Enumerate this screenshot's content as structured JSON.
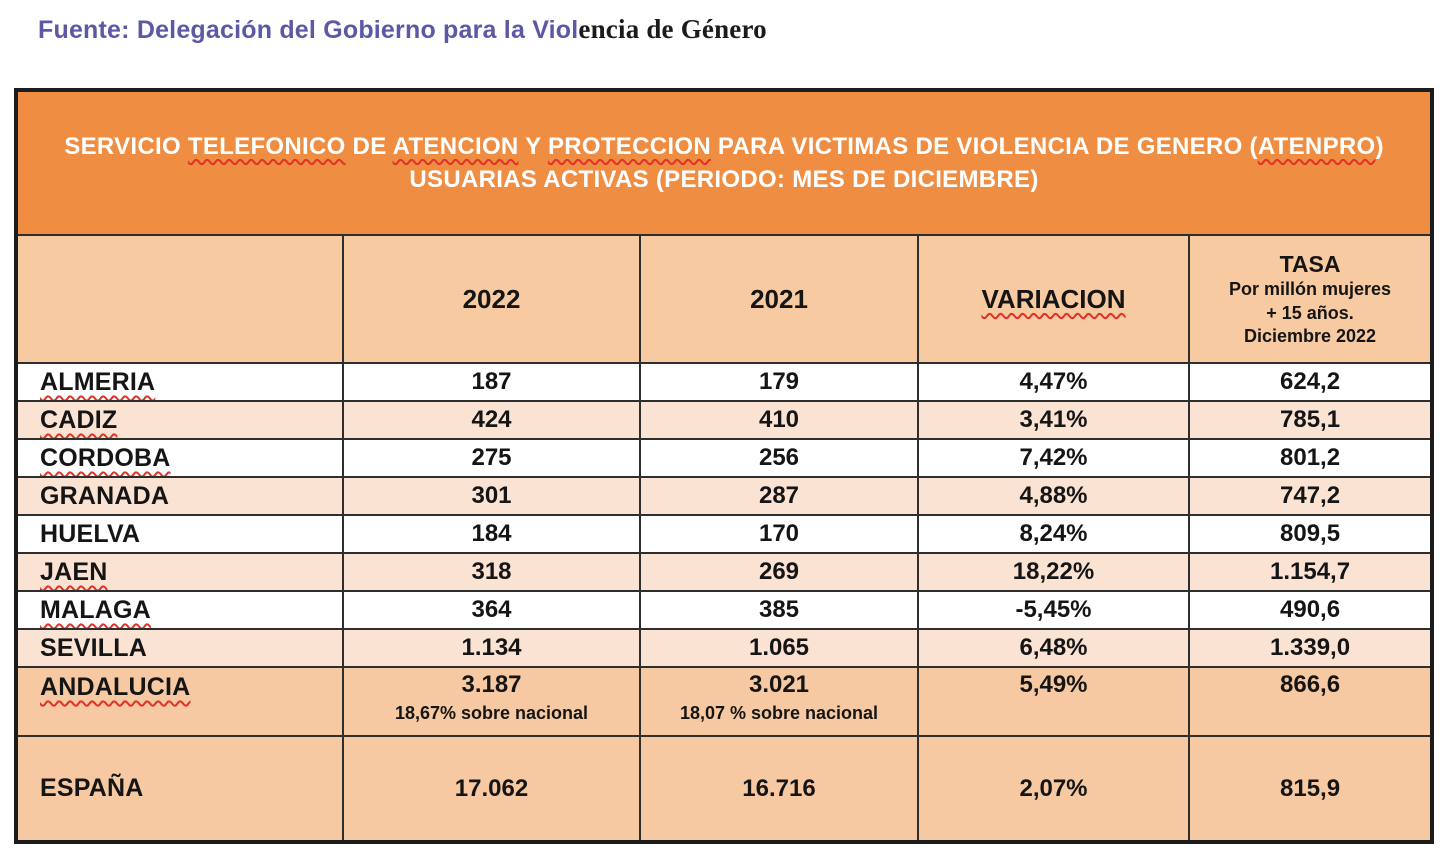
{
  "source": {
    "primary": "Fuente: Delegación del Gobierno para la Viol",
    "secondary": "encia de Género"
  },
  "table": {
    "title": {
      "line1": [
        {
          "text": "SERVICIO "
        },
        {
          "text": "TELEFONICO",
          "misspelled": true
        },
        {
          "text": " DE "
        },
        {
          "text": "ATENCION",
          "misspelled": true
        },
        {
          "text": " Y "
        },
        {
          "text": "PROTECCION",
          "misspelled": true
        },
        {
          "text": " PARA VICTIMAS DE VIOLENCIA DE GENERO ("
        },
        {
          "text": "ATENPRO",
          "misspelled": true
        },
        {
          "text": ")"
        }
      ],
      "line2": [
        {
          "text": "USUARIAS ACTIVAS (PERIODO: MES DE DICIEMBRE)"
        }
      ]
    },
    "columns": {
      "region": "",
      "y2022": "2022",
      "y2021": "2021",
      "variacion": "VARIACION",
      "variacion_misspelled": true,
      "tasa": {
        "line1": "TASA",
        "line2": "Por millón mujeres",
        "line3": "+ 15 años.",
        "line4": "Diciembre 2022"
      }
    },
    "rows": [
      {
        "region": "ALMERIA",
        "misspelled": true,
        "v2022": "187",
        "v2021": "179",
        "variacion": "4,47%",
        "tasa": "624,2",
        "shade": "white"
      },
      {
        "region": "CADIZ",
        "misspelled": true,
        "v2022": "424",
        "v2021": "410",
        "variacion": "3,41%",
        "tasa": "785,1",
        "shade": "light"
      },
      {
        "region": "CORDOBA",
        "misspelled": true,
        "v2022": "275",
        "v2021": "256",
        "variacion": "7,42%",
        "tasa": "801,2",
        "shade": "white"
      },
      {
        "region": "GRANADA",
        "misspelled": false,
        "v2022": "301",
        "v2021": "287",
        "variacion": "4,88%",
        "tasa": "747,2",
        "shade": "light"
      },
      {
        "region": "HUELVA",
        "misspelled": false,
        "v2022": "184",
        "v2021": "170",
        "variacion": "8,24%",
        "tasa": "809,5",
        "shade": "white"
      },
      {
        "region": "JAEN",
        "misspelled": true,
        "v2022": "318",
        "v2021": "269",
        "variacion": "18,22%",
        "tasa": "1.154,7",
        "shade": "light"
      },
      {
        "region": "MALAGA",
        "misspelled": true,
        "v2022": "364",
        "v2021": "385",
        "variacion": "-5,45%",
        "tasa": "490,6",
        "shade": "white"
      },
      {
        "region": "SEVILLA",
        "misspelled": false,
        "v2022": "1.134",
        "v2021": "1.065",
        "variacion": "6,48%",
        "tasa": "1.339,0",
        "shade": "light"
      },
      {
        "region": "ANDALUCIA",
        "misspelled": true,
        "v2022": "3.187",
        "sub2022": "18,67% sobre nacional",
        "v2021": "3.021",
        "sub2021": "18,07 % sobre nacional",
        "variacion": "5,49%",
        "tasa": "866,6",
        "shade": "dark",
        "two_line": true
      },
      {
        "region": "ESPAÑA",
        "misspelled": false,
        "v2022": "17.062",
        "v2021": "16.716",
        "variacion": "2,07%",
        "tasa": "815,9",
        "shade": "dark",
        "tall": true
      }
    ],
    "colors": {
      "title_band": "#ef8e42",
      "header_row": "#f7caa2",
      "row_light": "#fbe3d4",
      "row_white": "#ffffff",
      "row_dark": "#f6c9a2",
      "spellcheck_squiggle": "#e03227",
      "source_text": "#5c59a4"
    }
  }
}
